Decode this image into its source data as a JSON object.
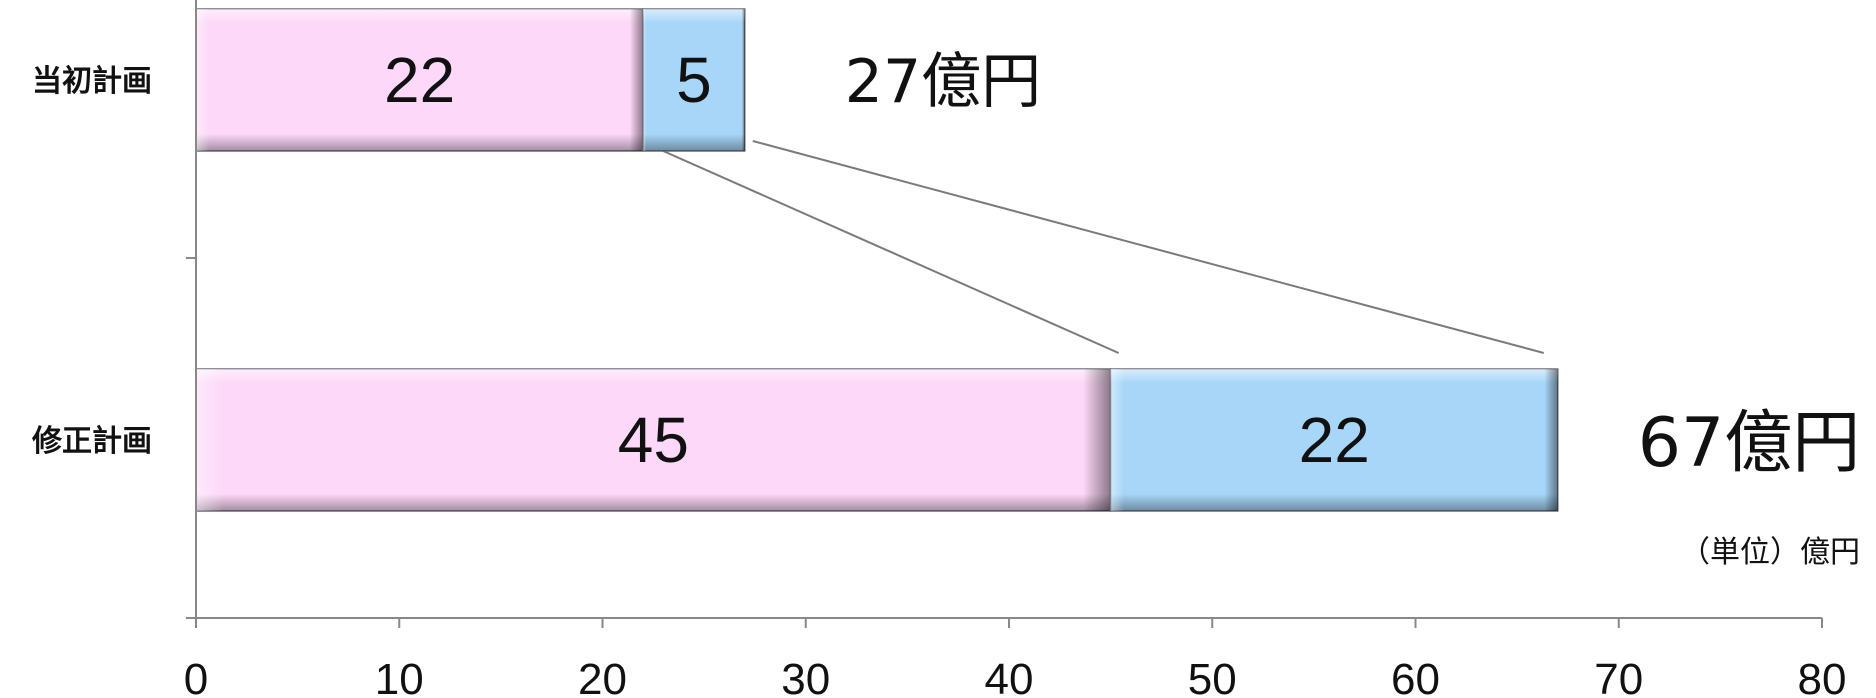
{
  "chart_data": {
    "type": "bar",
    "orientation": "horizontal",
    "stacked": true,
    "categories": [
      "当初計画",
      "修正計画"
    ],
    "series": [
      {
        "values": [
          22,
          45
        ],
        "color": "#fdd8f8"
      },
      {
        "values": [
          5,
          22
        ],
        "color": "#a7d6f8"
      }
    ],
    "totals": [
      "27億円",
      "67億円"
    ],
    "unit_label": "（単位）億円",
    "xlim": [
      0,
      80
    ],
    "x_ticks": [
      0,
      10,
      20,
      30,
      40,
      50,
      60,
      70,
      80
    ],
    "connector_color": "#7a7a7a",
    "axis_color": "#888888",
    "grid": false,
    "legend": "none"
  }
}
